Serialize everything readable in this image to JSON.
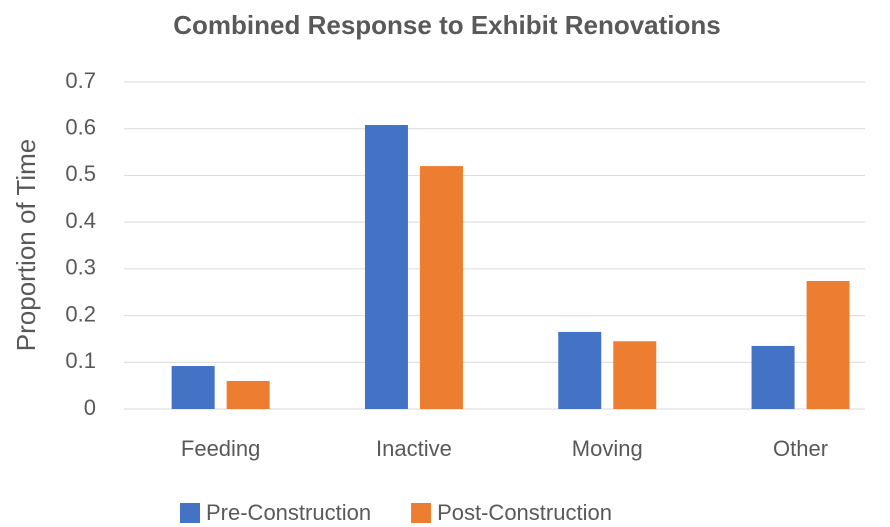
{
  "chart_data": {
    "type": "bar",
    "title": "Combined Response to Exhibit Renovations",
    "y_label": "Proportion of Time",
    "categories": [
      "Feeding",
      "Inactive",
      "Moving",
      "Other"
    ],
    "series": [
      {
        "name": "Pre-Construction",
        "color": "#4472c4",
        "values": [
          0.092,
          0.608,
          0.165,
          0.135
        ]
      },
      {
        "name": "Post-Construction",
        "color": "#ed7d31",
        "values": [
          0.06,
          0.52,
          0.145,
          0.274
        ]
      }
    ],
    "ylim": [
      0,
      0.7
    ],
    "yticks": [
      0,
      0.1,
      0.2,
      0.3,
      0.4,
      0.5,
      0.6,
      0.7
    ],
    "grid": true,
    "legend": "bottom"
  }
}
